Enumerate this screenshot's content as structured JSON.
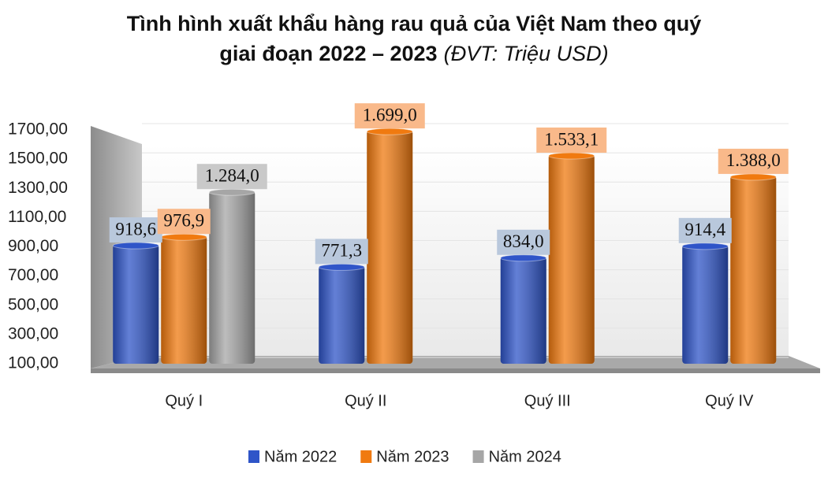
{
  "chart_data": {
    "type": "bar",
    "title": [
      "Tình hình xuất khẩu hàng rau quả của Việt Nam theo quý",
      "giai đoạn  2022 – 2023"
    ],
    "unit_note": "(ĐVT: Triệu USD)",
    "categories": [
      "Quý I",
      "Quý II",
      "Quý III",
      "Quý IV"
    ],
    "series": [
      {
        "name": "Năm 2022",
        "color": "#2f55c8",
        "label_bg": "#b9c8dc",
        "values": [
          918.6,
          771.3,
          834.0,
          914.4
        ],
        "value_labels": [
          "918,6",
          "771,3",
          "834,0",
          "914,4"
        ]
      },
      {
        "name": "Năm 2023",
        "color": "#f07a10",
        "label_bg": "#f9b98a",
        "values": [
          976.9,
          1699.0,
          1533.1,
          1388.0
        ],
        "value_labels": [
          "976,9",
          "1.699,0",
          "1.533,1",
          "1.388,0"
        ]
      },
      {
        "name": "Năm 2024",
        "color": "#a6a6a6",
        "label_bg": "#c9c9c9",
        "values": [
          1284.0,
          null,
          null,
          null
        ],
        "value_labels": [
          "1.284,0",
          null,
          null,
          null
        ]
      }
    ],
    "ylim": [
      100,
      1700
    ],
    "yticks": [
      {
        "value": 100,
        "label": "100,00"
      },
      {
        "value": 300,
        "label": "300,00"
      },
      {
        "value": 500,
        "label": "500,00"
      },
      {
        "value": 700,
        "label": "700,00"
      },
      {
        "value": 900,
        "label": "900,00"
      },
      {
        "value": 1100,
        "label": "1100,00"
      },
      {
        "value": 1300,
        "label": "1300,00"
      },
      {
        "value": 1500,
        "label": "1500,00"
      },
      {
        "value": 1700,
        "label": "1700,00"
      }
    ],
    "grid": true
  }
}
